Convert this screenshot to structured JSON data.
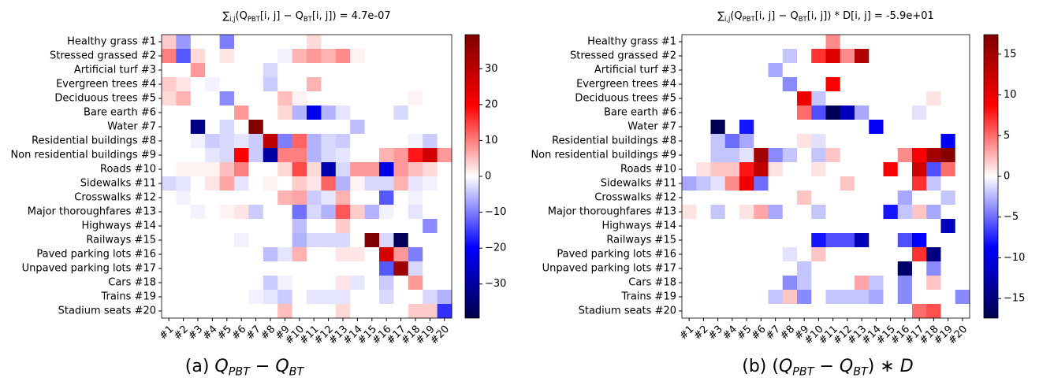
{
  "chart_data": [
    {
      "type": "heatmap",
      "colormap": "seismic",
      "title": [
        {
          "text": "∑"
        },
        {
          "text": "i,j",
          "sub": true
        },
        {
          "text": "(Q"
        },
        {
          "text": "PBT",
          "sub": true
        },
        {
          "text": "[i, j] − Q"
        },
        {
          "text": "BT",
          "sub": true
        },
        {
          "text": "[i, j]) =  4.7e-07"
        }
      ],
      "caption": [
        {
          "text": "(a) "
        },
        {
          "text": "Q",
          "italic": true
        },
        {
          "text": "PBT",
          "sub": true,
          "italic": true
        },
        {
          "text": " − "
        },
        {
          "text": "Q",
          "italic": true
        },
        {
          "text": "BT",
          "sub": true,
          "italic": true
        }
      ],
      "y_categories": [
        "Healthy grass #1",
        "Stressed grassed #2",
        "Artificial turf #3",
        "Evergreen trees #4",
        "Deciduous trees #5",
        "Bare earth #6",
        "Water #7",
        "Residential buildings #8",
        "Non residential buildings #9",
        "Roads #10",
        "Sidewalks #11",
        "Crosswalks #12",
        "Major thoroughfares #13",
        "Highways #14",
        "Railways #15",
        "Paved parking lots #16",
        "Unpaved parking lots #17",
        "Cars #18",
        "Trains #19",
        "Stadium seats #20"
      ],
      "categories": [
        "#1",
        "#2",
        "#3",
        "#4",
        "#5",
        "#6",
        "#7",
        "#8",
        "#9",
        "#10",
        "#11",
        "#12",
        "#13",
        "#14",
        "#15",
        "#16",
        "#17",
        "#18",
        "#19",
        "#20"
      ],
      "clim": [
        -39.5,
        39.5
      ],
      "cticks": [
        {
          "value": -30,
          "label": "−30"
        },
        {
          "value": -20,
          "label": "−20"
        },
        {
          "value": -10,
          "label": "−10"
        },
        0,
        10,
        20,
        30
      ],
      "values": [
        [
          4,
          -8,
          0,
          0,
          -10,
          0,
          0,
          0,
          0,
          0,
          3,
          0,
          0,
          0,
          0,
          0,
          0,
          0,
          0,
          0
        ],
        [
          10,
          -13,
          3,
          0,
          2,
          0,
          0,
          0,
          -1,
          6,
          8,
          6,
          9,
          1,
          0,
          0,
          0,
          0,
          0,
          0
        ],
        [
          0,
          0,
          8,
          0,
          0,
          0,
          0,
          -3,
          0,
          0,
          0,
          0,
          0,
          0,
          0,
          0,
          0,
          0,
          0,
          0
        ],
        [
          4,
          2,
          0,
          -1,
          0,
          0,
          0,
          -4,
          0,
          0,
          6,
          0,
          0,
          0,
          0,
          0,
          0,
          0,
          0,
          0
        ],
        [
          3,
          6,
          0,
          0,
          -9,
          0,
          0,
          0,
          5,
          1,
          0,
          0,
          0,
          0,
          0,
          0,
          0,
          1,
          0,
          0
        ],
        [
          0,
          0,
          0,
          0,
          0,
          8,
          0,
          0,
          3,
          -6,
          -22,
          -6,
          -2,
          0,
          0,
          0,
          -3,
          0,
          0,
          0
        ],
        [
          0,
          0,
          -33,
          0,
          -3,
          0,
          39,
          0,
          0,
          0,
          0,
          0,
          0,
          -5,
          0,
          0,
          0,
          0,
          0,
          0
        ],
        [
          0,
          0,
          -1,
          -4,
          -3,
          -2,
          -4,
          30,
          -10,
          12,
          -6,
          -3,
          -4,
          0,
          0,
          0,
          0,
          -1,
          -4,
          0
        ],
        [
          0,
          0,
          0,
          -2,
          -3,
          20,
          -4,
          -30,
          10,
          10,
          -6,
          -3,
          -2,
          0,
          0,
          6,
          8,
          18,
          27,
          8
        ],
        [
          0,
          1,
          1,
          1,
          5,
          10,
          0,
          0,
          3,
          14,
          3,
          -29,
          -3,
          8,
          8,
          -23,
          8,
          5,
          3,
          0
        ],
        [
          -3,
          -2,
          0,
          2,
          7,
          -2,
          0,
          1,
          0,
          4,
          2,
          12,
          -6,
          1,
          -3,
          -3,
          6,
          -2,
          -1,
          0
        ],
        [
          0,
          -1,
          0,
          0,
          0,
          0,
          0,
          0,
          6,
          7,
          -4,
          -2,
          6,
          0,
          0,
          -13,
          0,
          -1,
          0,
          0
        ],
        [
          0,
          0,
          -1,
          0,
          1,
          2,
          -4,
          0,
          0,
          -11,
          -3,
          -6,
          13,
          4,
          -6,
          -1,
          0,
          -2,
          0,
          0
        ],
        [
          0,
          0,
          0,
          0,
          0,
          0,
          0,
          0,
          0,
          -5,
          0,
          0,
          4,
          0,
          0,
          0,
          0,
          0,
          -9,
          0
        ],
        [
          0,
          0,
          0,
          0,
          0,
          -1,
          0,
          0,
          0,
          -6,
          -3,
          -3,
          -3,
          0,
          39,
          -3,
          -38,
          0,
          0,
          0
        ],
        [
          0,
          0,
          0,
          0,
          0,
          0,
          0,
          -5,
          -2,
          6,
          0,
          0,
          2,
          2,
          0,
          26,
          8,
          -10,
          0,
          0
        ],
        [
          0,
          0,
          0,
          0,
          0,
          0,
          0,
          0,
          0,
          0,
          0,
          0,
          0,
          0,
          0,
          -13,
          35,
          -3,
          0,
          0
        ],
        [
          0,
          0,
          0,
          0,
          0,
          0,
          0,
          -4,
          -1,
          0,
          0,
          0,
          2,
          -2,
          0,
          -4,
          0,
          8,
          0,
          0
        ],
        [
          0,
          0,
          0,
          0,
          0,
          0,
          -1,
          -2,
          -4,
          0,
          -2,
          -2,
          -2,
          0,
          0,
          -3,
          0,
          0,
          -3,
          -6
        ],
        [
          0,
          0,
          0,
          0,
          0,
          0,
          0,
          0,
          5,
          0,
          0,
          0,
          3,
          0,
          0,
          0,
          0,
          4,
          4,
          -16
        ]
      ]
    },
    {
      "type": "heatmap",
      "colormap": "seismic",
      "title": [
        {
          "text": "∑"
        },
        {
          "text": "i,j",
          "sub": true
        },
        {
          "text": "(Q"
        },
        {
          "text": "PBT",
          "sub": true
        },
        {
          "text": "[i, j] − Q"
        },
        {
          "text": "BT",
          "sub": true
        },
        {
          "text": "[i, j]) * D[i, j] =  -5.9e+01"
        }
      ],
      "caption": [
        {
          "text": "(b) ("
        },
        {
          "text": "Q",
          "italic": true
        },
        {
          "text": "PBT",
          "sub": true,
          "italic": true
        },
        {
          "text": " − "
        },
        {
          "text": "Q",
          "italic": true
        },
        {
          "text": "BT",
          "sub": true,
          "italic": true
        },
        {
          "text": ") ∗ "
        },
        {
          "text": "D",
          "italic": true
        }
      ],
      "y_categories": [
        "Healthy grass #1",
        "Stressed grassed #2",
        "Artificial turf #3",
        "Evergreen trees #4",
        "Deciduous trees #5",
        "Bare earth #6",
        "Water #7",
        "Residential buildings #8",
        "Non residential buildings #9",
        "Roads #10",
        "Sidewalks #11",
        "Crosswalks #12",
        "Major thoroughfares #13",
        "Highways #14",
        "Railways #15",
        "Paved parking lots #16",
        "Unpaved parking lots #17",
        "Cars #18",
        "Trains #19",
        "Stadium seats #20"
      ],
      "categories": [
        "#1",
        "#2",
        "#3",
        "#4",
        "#5",
        "#6",
        "#7",
        "#8",
        "#9",
        "#10",
        "#11",
        "#12",
        "#13",
        "#14",
        "#15",
        "#16",
        "#17",
        "#18",
        "#19",
        "#20"
      ],
      "clim": [
        -17.4,
        17.4
      ],
      "cticks": [
        {
          "value": -15,
          "label": "−15"
        },
        {
          "value": -10,
          "label": "−10"
        },
        {
          "value": -5,
          "label": "−5"
        },
        0,
        5,
        10,
        15
      ],
      "values": [
        [
          0,
          0,
          0,
          0,
          0,
          0,
          0,
          0,
          0,
          0,
          4,
          0,
          0,
          0,
          0,
          0,
          0,
          0,
          0,
          0
        ],
        [
          0,
          0,
          0,
          0,
          0,
          0,
          0,
          -2,
          0,
          7,
          11,
          4,
          14,
          0,
          0,
          0,
          0,
          0,
          0,
          0
        ],
        [
          0,
          0,
          0,
          0,
          0,
          0,
          -3,
          0,
          0,
          0,
          0,
          0,
          0,
          0,
          0,
          0,
          0,
          0,
          0,
          0
        ],
        [
          0,
          0,
          0,
          0,
          0,
          0,
          0,
          -4,
          0,
          0,
          9,
          0,
          0,
          0,
          0,
          0,
          0,
          0,
          0,
          0
        ],
        [
          0,
          0,
          0,
          0,
          0,
          0,
          0,
          0,
          10,
          -2,
          0,
          0,
          0,
          0,
          0,
          0,
          0,
          1,
          0,
          0
        ],
        [
          0,
          0,
          0,
          0,
          0,
          0,
          0,
          0,
          5,
          -6,
          -17,
          -12,
          -3,
          0,
          0,
          0,
          -1,
          0,
          0,
          0
        ],
        [
          0,
          0,
          -17,
          0,
          -8,
          0,
          0,
          0,
          0,
          0,
          0,
          0,
          0,
          -9,
          0,
          0,
          0,
          0,
          0,
          0
        ],
        [
          0,
          0,
          -2,
          -5,
          -3,
          0,
          0,
          0,
          1,
          -1,
          0,
          0,
          0,
          0,
          0,
          0,
          0,
          0,
          -9,
          0
        ],
        [
          0,
          0,
          -2,
          -2,
          -1,
          15,
          -4,
          -2,
          0,
          -2,
          2,
          0,
          0,
          0,
          0,
          4,
          9,
          15,
          17,
          0
        ],
        [
          0,
          1,
          2,
          2,
          8,
          13,
          1,
          0,
          0,
          1,
          0,
          0,
          0,
          0,
          9,
          0,
          12,
          -6,
          5,
          0
        ],
        [
          -3,
          -2,
          -1,
          4,
          10,
          -5,
          0,
          0,
          0,
          0,
          0,
          2,
          0,
          0,
          0,
          0,
          7,
          -2,
          0,
          0
        ],
        [
          0,
          0,
          0,
          0,
          0,
          0,
          0,
          0,
          2,
          0,
          0,
          0,
          0,
          0,
          0,
          -3,
          0,
          0,
          -2,
          0
        ],
        [
          1,
          0,
          -2,
          0,
          1,
          3,
          -3,
          0,
          0,
          -2,
          0,
          0,
          0,
          0,
          -8,
          -2,
          2,
          -3,
          0,
          0
        ],
        [
          0,
          0,
          0,
          0,
          0,
          0,
          0,
          0,
          0,
          0,
          0,
          0,
          0,
          0,
          0,
          0,
          0,
          0,
          -12,
          0
        ],
        [
          0,
          0,
          0,
          0,
          0,
          0,
          0,
          0,
          0,
          -8,
          -6,
          -6,
          -12,
          0,
          0,
          -6,
          -9,
          0,
          0,
          0
        ],
        [
          0,
          0,
          0,
          0,
          0,
          0,
          0,
          -1,
          0,
          2,
          0,
          0,
          0,
          0,
          0,
          0,
          7,
          -15,
          0,
          0
        ],
        [
          0,
          0,
          0,
          0,
          0,
          0,
          0,
          0,
          -2,
          0,
          0,
          0,
          0,
          0,
          0,
          -16,
          0,
          -4,
          0,
          0
        ],
        [
          0,
          0,
          0,
          0,
          0,
          0,
          0,
          -4,
          -2,
          0,
          0,
          0,
          3,
          -2,
          0,
          -4,
          0,
          2,
          0,
          0
        ],
        [
          0,
          0,
          0,
          0,
          0,
          0,
          -2,
          2,
          -4,
          0,
          -2,
          -2,
          -2,
          -3,
          0,
          -4,
          0,
          0,
          0,
          -4
        ],
        [
          0,
          0,
          0,
          0,
          0,
          0,
          0,
          0,
          0,
          0,
          0,
          0,
          0,
          0,
          0,
          0,
          5,
          6,
          0,
          0
        ]
      ]
    }
  ]
}
